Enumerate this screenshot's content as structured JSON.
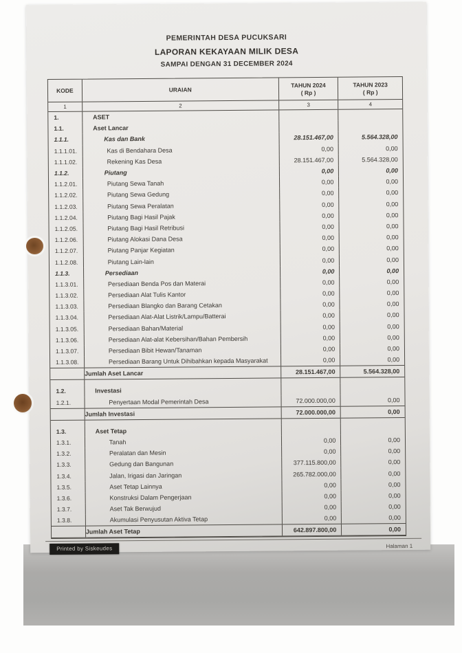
{
  "header": {
    "line1": "PEMERINTAH DESA PUCUKSARI",
    "line2": "LAPORAN KEKAYAAN MILIK DESA",
    "line3": "SAMPAI DENGAN 31 DECEMBER 2024"
  },
  "table": {
    "columns": {
      "kode": "KODE",
      "uraian": "URAIAN",
      "y2024": "TAHUN 2024",
      "y2023": "TAHUN 2023",
      "rp": "( Rp )"
    },
    "column_numbers": [
      "1",
      "2",
      "3",
      "4"
    ],
    "rows": [
      {
        "kode": "1.",
        "uraian": "ASET",
        "v2024": "",
        "v2023": "",
        "style": "section"
      },
      {
        "kode": "1.1.",
        "uraian": "Aset Lancar",
        "v2024": "",
        "v2023": "",
        "style": "section"
      },
      {
        "kode": "1.1.1.",
        "uraian": "Kas dan Bank",
        "v2024": "28.151.467,00",
        "v2023": "5.564.328,00",
        "style": "subsection"
      },
      {
        "kode": "1.1.1.01.",
        "uraian": "Kas di Bendahara Desa",
        "v2024": "0,00",
        "v2023": "0,00",
        "style": "detail"
      },
      {
        "kode": "1.1.1.02.",
        "uraian": "Rekening Kas Desa",
        "v2024": "28.151.467,00",
        "v2023": "5.564.328,00",
        "style": "detail"
      },
      {
        "kode": "1.1.2.",
        "uraian": "Piutang",
        "v2024": "0,00",
        "v2023": "0,00",
        "style": "subsection"
      },
      {
        "kode": "1.1.2.01.",
        "uraian": "Piutang Sewa Tanah",
        "v2024": "0,00",
        "v2023": "0,00",
        "style": "detail"
      },
      {
        "kode": "1.1.2.02.",
        "uraian": "Piutang Sewa Gedung",
        "v2024": "0,00",
        "v2023": "0,00",
        "style": "detail"
      },
      {
        "kode": "1.1.2.03.",
        "uraian": "Piutang Sewa Peralatan",
        "v2024": "0,00",
        "v2023": "0,00",
        "style": "detail"
      },
      {
        "kode": "1.1.2.04.",
        "uraian": "Piutang Bagi Hasil Pajak",
        "v2024": "0,00",
        "v2023": "0,00",
        "style": "detail"
      },
      {
        "kode": "1.1.2.05.",
        "uraian": "Piutang Bagi Hasil Retribusi",
        "v2024": "0,00",
        "v2023": "0,00",
        "style": "detail"
      },
      {
        "kode": "1.1.2.06.",
        "uraian": "Piutang Alokasi Dana Desa",
        "v2024": "0,00",
        "v2023": "0,00",
        "style": "detail"
      },
      {
        "kode": "1.1.2.07.",
        "uraian": "Piutang Panjar Kegiatan",
        "v2024": "0,00",
        "v2023": "0,00",
        "style": "detail"
      },
      {
        "kode": "1.1.2.08.",
        "uraian": "Piutang Lain-lain",
        "v2024": "0,00",
        "v2023": "0,00",
        "style": "detail"
      },
      {
        "kode": "1.1.3.",
        "uraian": "Persediaan",
        "v2024": "0,00",
        "v2023": "0,00",
        "style": "subsection"
      },
      {
        "kode": "1.1.3.01.",
        "uraian": "Persediaan Benda Pos dan Materai",
        "v2024": "0,00",
        "v2023": "0,00",
        "style": "detail"
      },
      {
        "kode": "1.1.3.02.",
        "uraian": "Persediaan Alat Tulis Kantor",
        "v2024": "0,00",
        "v2023": "0,00",
        "style": "detail"
      },
      {
        "kode": "1.1.3.03.",
        "uraian": "Persediaan Blangko dan Barang Cetakan",
        "v2024": "0,00",
        "v2023": "0,00",
        "style": "detail"
      },
      {
        "kode": "1.1.3.04.",
        "uraian": "Persediaan Alat-Alat Listrik/Lampu/Batterai",
        "v2024": "0,00",
        "v2023": "0,00",
        "style": "detail"
      },
      {
        "kode": "1.1.3.05.",
        "uraian": "Persediaan Bahan/Material",
        "v2024": "0,00",
        "v2023": "0,00",
        "style": "detail"
      },
      {
        "kode": "1.1.3.06.",
        "uraian": "Persediaan Alat-alat Kebersihan/Bahan Pembersih",
        "v2024": "0,00",
        "v2023": "0,00",
        "style": "detail"
      },
      {
        "kode": "1.1.3.07.",
        "uraian": "Persediaan Bibit Hewan/Tanaman",
        "v2024": "0,00",
        "v2023": "0,00",
        "style": "detail"
      },
      {
        "kode": "1.1.3.08.",
        "uraian": "Persediaan Barang Untuk Dihibahkan kepada Masyarakat",
        "v2024": "0,00",
        "v2023": "0,00",
        "style": "detail"
      },
      {
        "kode": "",
        "uraian": "Jumlah Aset Lancar",
        "v2024": "28.151.467,00",
        "v2023": "5.564.328,00",
        "style": "subtotal"
      },
      {
        "kode": "",
        "uraian": "",
        "v2024": "",
        "v2023": "",
        "style": "gap"
      },
      {
        "kode": "1.2.",
        "uraian": "Investasi",
        "v2024": "",
        "v2023": "",
        "style": "section"
      },
      {
        "kode": "1.2.1.",
        "uraian": "Penyertaan Modal Pemerintah Desa",
        "v2024": "72.000.000,00",
        "v2023": "0,00",
        "style": "detail"
      },
      {
        "kode": "",
        "uraian": "Jumlah Investasi",
        "v2024": "72.000.000,00",
        "v2023": "0,00",
        "style": "subtotal"
      },
      {
        "kode": "",
        "uraian": "",
        "v2024": "",
        "v2023": "",
        "style": "gap"
      },
      {
        "kode": "1.3.",
        "uraian": "Aset Tetap",
        "v2024": "",
        "v2023": "",
        "style": "section"
      },
      {
        "kode": "1.3.1.",
        "uraian": "Tanah",
        "v2024": "0,00",
        "v2023": "0,00",
        "style": "detail"
      },
      {
        "kode": "1.3.2.",
        "uraian": "Peralatan dan Mesin",
        "v2024": "0,00",
        "v2023": "0,00",
        "style": "detail"
      },
      {
        "kode": "1.3.3.",
        "uraian": "Gedung dan Bangunan",
        "v2024": "377.115.800,00",
        "v2023": "0,00",
        "style": "detail"
      },
      {
        "kode": "1.3.4.",
        "uraian": "Jalan, Irigasi dan Jaringan",
        "v2024": "265.782.000,00",
        "v2023": "0,00",
        "style": "detail"
      },
      {
        "kode": "1.3.5.",
        "uraian": "Aset Tetap Lainnya",
        "v2024": "0,00",
        "v2023": "0,00",
        "style": "detail"
      },
      {
        "kode": "1.3.6.",
        "uraian": "Konstruksi Dalam Pengerjaan",
        "v2024": "0,00",
        "v2023": "0,00",
        "style": "detail"
      },
      {
        "kode": "1.3.7.",
        "uraian": "Aset Tak Berwujud",
        "v2024": "0,00",
        "v2023": "0,00",
        "style": "detail"
      },
      {
        "kode": "1.3.8.",
        "uraian": "Akumulasi Penyusutan Aktiva Tetap",
        "v2024": "0,00",
        "v2023": "0,00",
        "style": "detail"
      },
      {
        "kode": "",
        "uraian": "Jumlah Aset Tetap",
        "v2024": "642.897.800,00",
        "v2023": "0,00",
        "style": "subtotal"
      }
    ]
  },
  "footer": {
    "printed_by": "Printed by Siskeudes",
    "page": "Halaman 1"
  }
}
